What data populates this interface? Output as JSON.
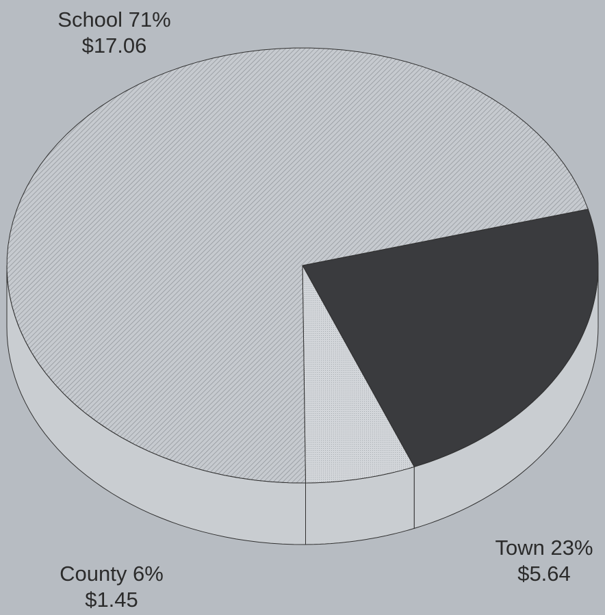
{
  "chart_data": {
    "type": "pie",
    "style": "3d",
    "slices": [
      {
        "label": "School",
        "percent": 71,
        "value": 17.06,
        "percent_text": "71%",
        "value_text": "$17.06",
        "color": "#c6cacf",
        "pattern": "diagonal-hatch"
      },
      {
        "label": "Town",
        "percent": 23,
        "value": 5.64,
        "percent_text": "23%",
        "value_text": "$5.64",
        "color": "#3a3b3e",
        "pattern": "solid"
      },
      {
        "label": "County",
        "percent": 6,
        "value": 1.45,
        "percent_text": "6%",
        "value_text": "$1.45",
        "color": "#d3d6da",
        "pattern": "dotted"
      }
    ],
    "background_color": "#b7bcc2",
    "outline_color": "#2f2f2f",
    "side_color": "#c9cdd1"
  }
}
